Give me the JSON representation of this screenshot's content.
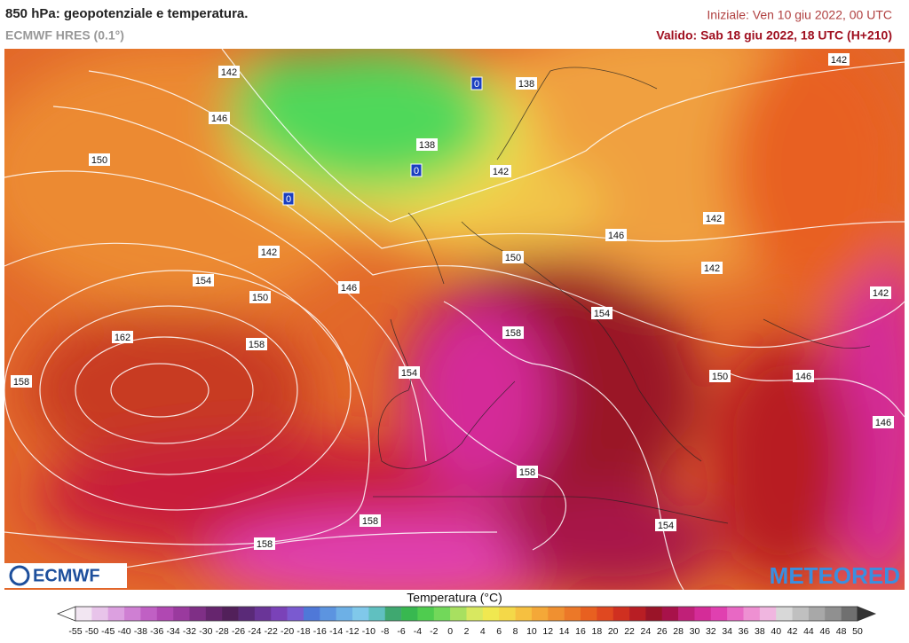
{
  "header": {
    "title": "850 hPa: geopotenziale e temperatura.",
    "subtitle": "ECMWF HRES (0.1°)",
    "initial": "Iniziale: Ven 10 giu 2022, 00 UTC",
    "valid": "Valido: Sab 18 giu 2022, 18 UTC (H+210)"
  },
  "map": {
    "contour_labels": [
      142,
      146,
      150,
      142,
      154,
      150,
      146,
      162,
      158,
      158,
      154,
      158,
      150,
      146,
      142,
      142,
      154,
      142,
      138,
      138,
      142,
      150,
      146,
      146,
      142,
      158,
      158,
      158,
      154
    ],
    "freezing_labels": [
      0,
      0,
      0
    ],
    "logo_left": "ECMWF",
    "logo_right": "METEORED"
  },
  "legend": {
    "title": "Temperatura (°C)",
    "ticks": [
      -55,
      -50,
      -45,
      -40,
      -38,
      -36,
      -34,
      -32,
      -30,
      -28,
      -26,
      -24,
      -22,
      -20,
      -18,
      -16,
      -14,
      -12,
      -10,
      -8,
      -6,
      -4,
      -2,
      0,
      2,
      4,
      6,
      8,
      10,
      12,
      14,
      16,
      18,
      20,
      22,
      24,
      26,
      28,
      30,
      32,
      34,
      36,
      38,
      40,
      42,
      44,
      46,
      48,
      50
    ],
    "colors": [
      "#f2e6f2",
      "#e8c4ea",
      "#dca0e0",
      "#cf7fd3",
      "#c060c4",
      "#b048b2",
      "#9a3a9e",
      "#7f2f86",
      "#66256e",
      "#52205a",
      "#5a2a78",
      "#6a3598",
      "#7a42b8",
      "#7a5ad0",
      "#4f78d8",
      "#5c94e0",
      "#6db0e6",
      "#80c8ea",
      "#60c0c0",
      "#3fa870",
      "#38b850",
      "#4fcc4f",
      "#72d85a",
      "#a8e060",
      "#d8e860",
      "#f0e850",
      "#f4d848",
      "#f6c040",
      "#f4a838",
      "#f09030",
      "#ec7828",
      "#e86020",
      "#e04820",
      "#d03020",
      "#b81e24",
      "#9a1428",
      "#a8124a",
      "#c02078",
      "#d42c98",
      "#e040b0",
      "#e868c4",
      "#ee90d2",
      "#f0b6e0",
      "#d8d8d8",
      "#c0c0c0",
      "#a8a8a8",
      "#909090",
      "#707070"
    ]
  }
}
